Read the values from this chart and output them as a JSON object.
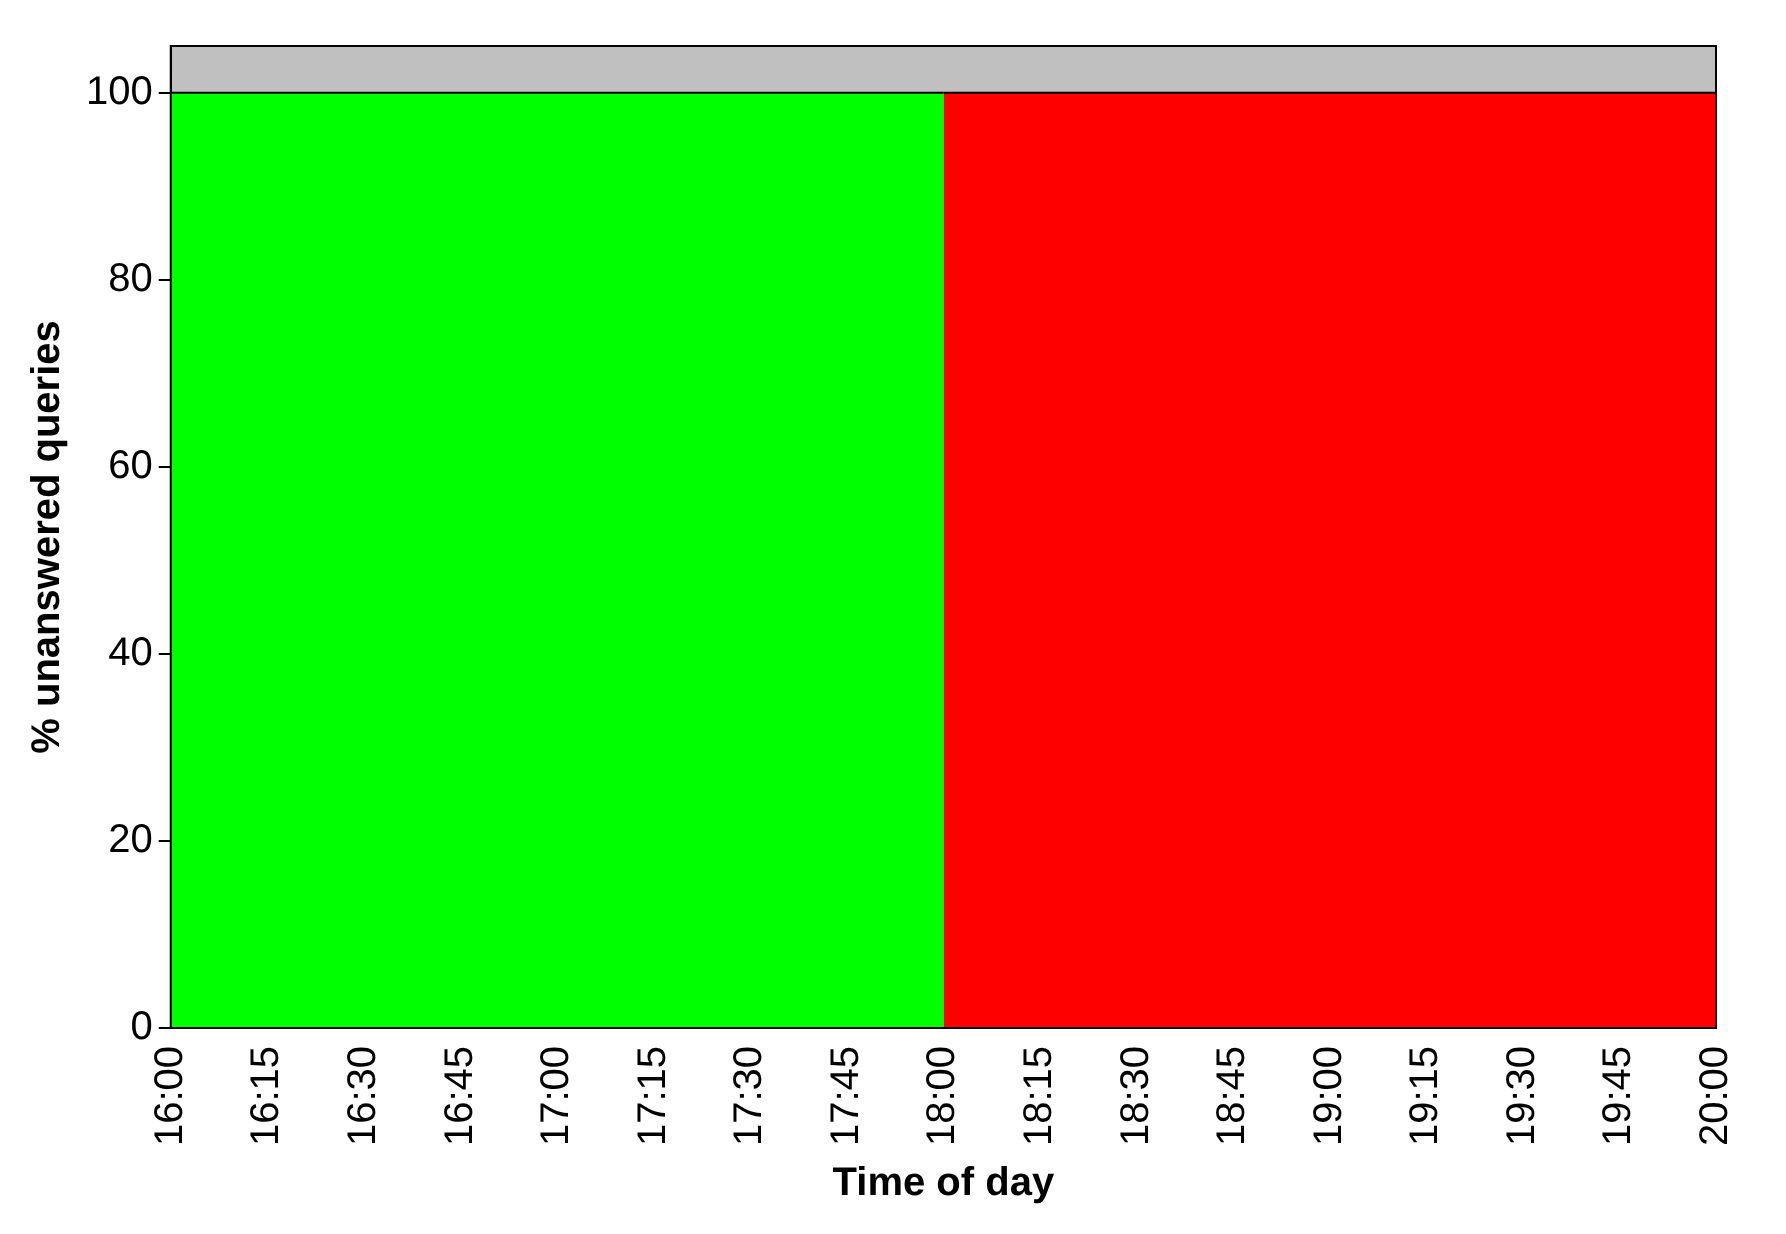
{
  "chart_data": {
    "type": "area",
    "xlabel": "Time of day",
    "ylabel": "% unanswered queries",
    "xlim": [
      16,
      20
    ],
    "ylim": [
      0,
      105
    ],
    "xticks": [
      {
        "value": 16,
        "label": "16:00"
      },
      {
        "value": 16.25,
        "label": "16:15"
      },
      {
        "value": 16.5,
        "label": "16:30"
      },
      {
        "value": 16.75,
        "label": "16:45"
      },
      {
        "value": 17,
        "label": "17:00"
      },
      {
        "value": 17.25,
        "label": "17:15"
      },
      {
        "value": 17.5,
        "label": "17:30"
      },
      {
        "value": 17.75,
        "label": "17:45"
      },
      {
        "value": 18,
        "label": "18:00"
      },
      {
        "value": 18.25,
        "label": "18:15"
      },
      {
        "value": 18.5,
        "label": "18:30"
      },
      {
        "value": 18.75,
        "label": "18:45"
      },
      {
        "value": 19,
        "label": "19:00"
      },
      {
        "value": 19.25,
        "label": "19:15"
      },
      {
        "value": 19.5,
        "label": "19:30"
      },
      {
        "value": 19.75,
        "label": "19:45"
      },
      {
        "value": 20,
        "label": "20:00"
      }
    ],
    "yticks": [
      0,
      20,
      40,
      60,
      80,
      100
    ],
    "series": [
      {
        "color": "#00ff00",
        "x": [
          16,
          18
        ],
        "values": [
          100,
          100
        ]
      },
      {
        "color": "#ff0000",
        "x": [
          18,
          20
        ],
        "values": [
          100,
          100
        ]
      }
    ]
  }
}
